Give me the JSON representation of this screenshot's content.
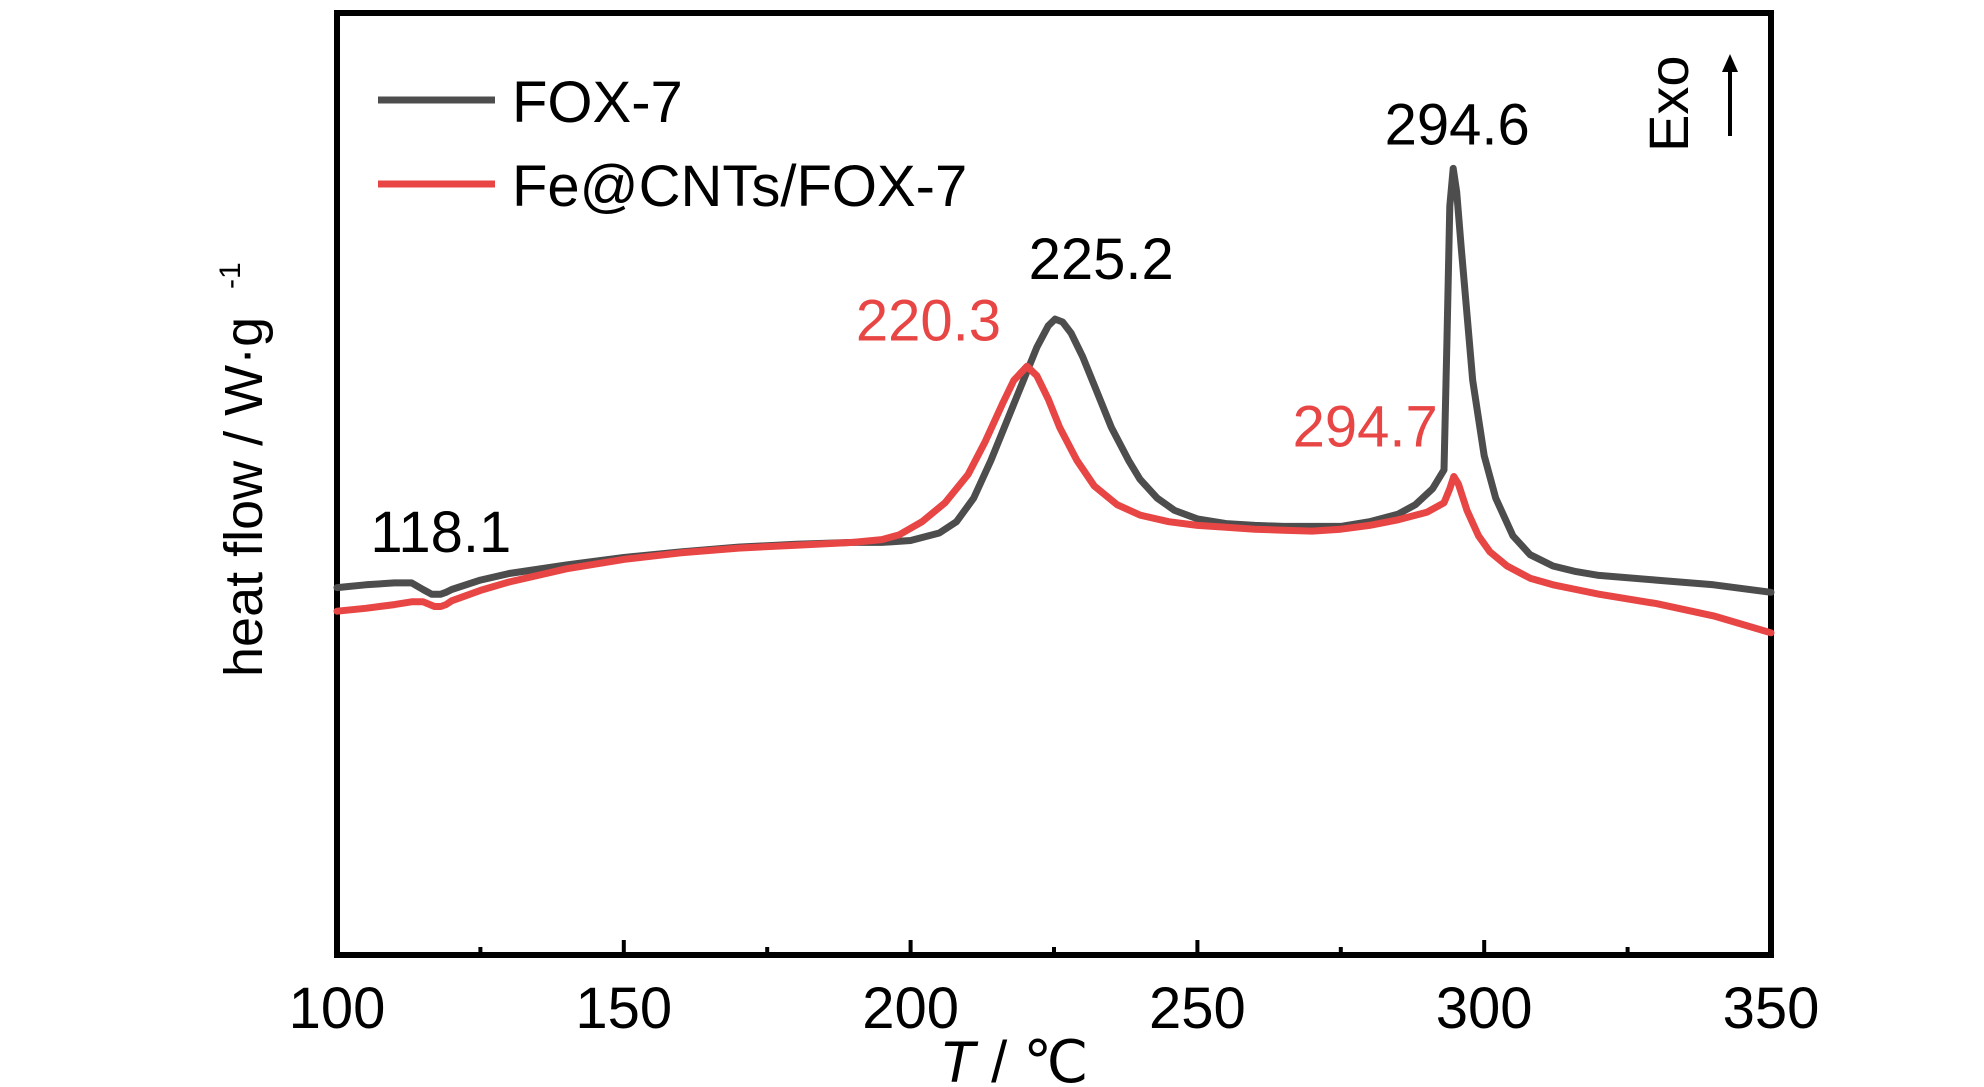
{
  "chart_data": {
    "type": "line",
    "xlabel_italic": "T",
    "xlabel_rest": " / ℃",
    "ylabel_main": "heat flow / W·g",
    "ylabel_sup": "-1",
    "xlim": [
      100,
      350
    ],
    "ylim": [
      0,
      10
    ],
    "xticks": [
      "100",
      "150",
      "200",
      "250",
      "300",
      "350"
    ],
    "exo_label": "Exo",
    "grid": false,
    "legend_position": "top-left",
    "series": [
      {
        "name": "FOX-7",
        "color": "#4d4d4d",
        "x": [
          100,
          105,
          110,
          113,
          115,
          116.5,
          117.5,
          118.1,
          119,
          120,
          125,
          130,
          140,
          150,
          160,
          170,
          180,
          190,
          195,
          200,
          205,
          208,
          211,
          214,
          217,
          220,
          222,
          224,
          225.2,
          226.5,
          228,
          230,
          232,
          235,
          238,
          240,
          243,
          246,
          250,
          255,
          260,
          265,
          270,
          275,
          280,
          285,
          288,
          291,
          293,
          293.5,
          294,
          294.6,
          295.2,
          296,
          297,
          298,
          300,
          302,
          305,
          308,
          312,
          316,
          320,
          330,
          340,
          350
        ],
        "y": [
          3.9,
          3.93,
          3.95,
          3.95,
          3.88,
          3.83,
          3.83,
          3.83,
          3.85,
          3.88,
          3.98,
          4.05,
          4.14,
          4.22,
          4.28,
          4.33,
          4.36,
          4.38,
          4.38,
          4.4,
          4.48,
          4.6,
          4.85,
          5.25,
          5.7,
          6.15,
          6.45,
          6.68,
          6.75,
          6.72,
          6.6,
          6.35,
          6.05,
          5.6,
          5.25,
          5.05,
          4.85,
          4.72,
          4.63,
          4.58,
          4.56,
          4.55,
          4.55,
          4.55,
          4.6,
          4.68,
          4.78,
          4.95,
          5.15,
          6.5,
          7.95,
          8.35,
          8.1,
          7.5,
          6.8,
          6.1,
          5.3,
          4.85,
          4.45,
          4.25,
          4.13,
          4.07,
          4.03,
          3.98,
          3.93,
          3.85
        ]
      },
      {
        "name": "Fe@CNTs/FOX-7",
        "color": "#e84545",
        "x": [
          100,
          105,
          110,
          113,
          115,
          117,
          118.1,
          119,
          120,
          125,
          130,
          140,
          150,
          160,
          170,
          180,
          190,
          195,
          198,
          202,
          206,
          210,
          213,
          216,
          218,
          220.3,
          222,
          224,
          226,
          229,
          232,
          236,
          240,
          245,
          250,
          255,
          260,
          265,
          270,
          275,
          280,
          285,
          290,
          293,
          294,
          294.7,
          295.5,
          297,
          299,
          301,
          304,
          308,
          312,
          316,
          320,
          330,
          340,
          350
        ],
        "y": [
          3.65,
          3.68,
          3.72,
          3.75,
          3.75,
          3.7,
          3.7,
          3.72,
          3.76,
          3.87,
          3.96,
          4.1,
          4.2,
          4.27,
          4.32,
          4.35,
          4.38,
          4.41,
          4.46,
          4.6,
          4.8,
          5.1,
          5.45,
          5.85,
          6.1,
          6.25,
          6.15,
          5.9,
          5.6,
          5.25,
          4.98,
          4.78,
          4.67,
          4.6,
          4.56,
          4.54,
          4.52,
          4.51,
          4.5,
          4.52,
          4.56,
          4.62,
          4.7,
          4.8,
          4.95,
          5.08,
          5.0,
          4.72,
          4.45,
          4.28,
          4.13,
          4.0,
          3.93,
          3.88,
          3.83,
          3.73,
          3.6,
          3.42
        ]
      }
    ],
    "annotations": [
      {
        "text": "118.1",
        "series": 0,
        "x": 118.1
      },
      {
        "text": "225.2",
        "series": 0,
        "x": 225.2
      },
      {
        "text": "294.6",
        "series": 0,
        "x": 294.6
      },
      {
        "text": "220.3",
        "series": 1,
        "x": 220.3
      },
      {
        "text": "294.7",
        "series": 1,
        "x": 294.7
      }
    ]
  }
}
